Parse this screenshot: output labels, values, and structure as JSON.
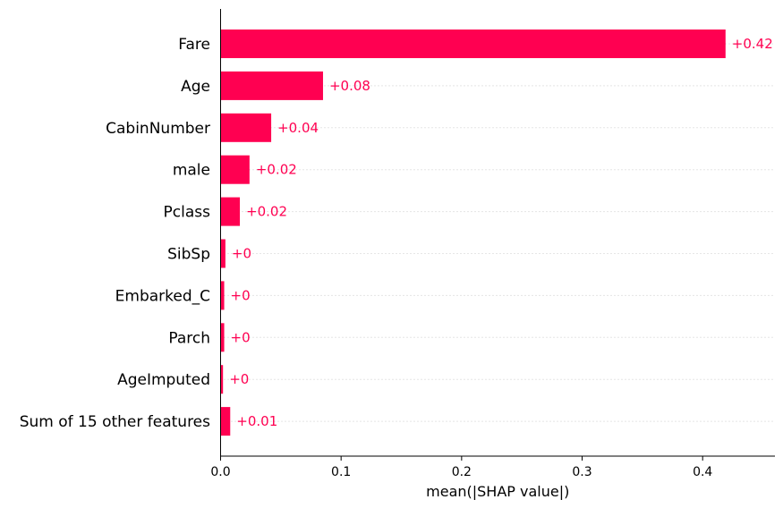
{
  "chart_data": {
    "type": "bar",
    "orientation": "horizontal",
    "categories": [
      "Fare",
      "Age",
      "CabinNumber",
      "male",
      "Pclass",
      "SibSp",
      "Embarked_C",
      "Parch",
      "AgeImputed",
      "Sum of 15 other features"
    ],
    "values": [
      0.419,
      0.085,
      0.042,
      0.024,
      0.016,
      0.004,
      0.003,
      0.003,
      0.002,
      0.008
    ],
    "value_labels": [
      "+0.42",
      "+0.08",
      "+0.04",
      "+0.02",
      "+0.02",
      "+0",
      "+0",
      "+0",
      "+0",
      "+0.01"
    ],
    "xlabel": "mean(|SHAP value|)",
    "ylabel": "",
    "xlim": [
      0,
      0.46
    ],
    "xticks": [
      0.0,
      0.1,
      0.2,
      0.3,
      0.4
    ],
    "xtick_labels": [
      "0.0",
      "0.1",
      "0.2",
      "0.3",
      "0.4"
    ],
    "grid": "dotted horizontal guide lines per row",
    "bar_color": "#ff0051",
    "label_color": "#ff0051"
  }
}
